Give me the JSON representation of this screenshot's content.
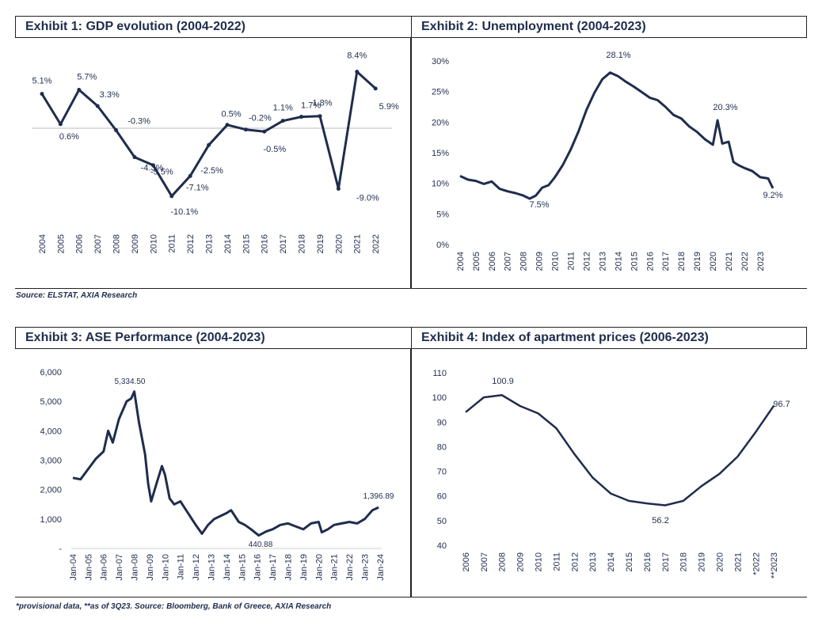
{
  "charts": [
    {
      "title": "Exhibit 1: GDP evolution (2004-2022)",
      "type": "line",
      "categories": [
        "2004",
        "2005",
        "2006",
        "2007",
        "2008",
        "2009",
        "2010",
        "2011",
        "2012",
        "2013",
        "2014",
        "2015",
        "2016",
        "2017",
        "2018",
        "2019",
        "2020",
        "2021",
        "2022"
      ],
      "values": [
        5.1,
        0.6,
        5.7,
        3.3,
        -0.3,
        -4.3,
        -5.5,
        -10.1,
        -7.1,
        -2.5,
        0.5,
        -0.2,
        -0.5,
        1.1,
        1.7,
        1.8,
        -9.0,
        8.4,
        5.9
      ],
      "labels": [
        "5.1%",
        "0.6%",
        "5.7%",
        "3.3%",
        "-0.3%",
        "-4.3%",
        "-5.5%",
        "-10.1%",
        "-7.1%",
        "-2.5%",
        "0.5%",
        "-0.2%",
        "-0.5%",
        "1.1%",
        "1.7%",
        "1.8%",
        "-9.0%",
        "8.4%",
        "5.9%"
      ],
      "line_color": "#1f2d4d"
    },
    {
      "title": "Exhibit 2: Unemployment (2004-2023)",
      "type": "line",
      "x_labels": [
        "2004",
        "2005",
        "2006",
        "2007",
        "2008",
        "2009",
        "2010",
        "2011",
        "2012",
        "2013",
        "2014",
        "2015",
        "2016",
        "2017",
        "2018",
        "2019",
        "2020",
        "2021",
        "2022",
        "2023"
      ],
      "y_ticks": [
        "0%",
        "5%",
        "10%",
        "15%",
        "20%",
        "25%",
        "30%"
      ],
      "ylim": [
        0,
        30
      ],
      "annotations": [
        "28.1%",
        "7.5%",
        "20.3%",
        "9.2%"
      ],
      "series": [
        {
          "x": 2004.0,
          "y": 11.2
        },
        {
          "x": 2004.5,
          "y": 10.6
        },
        {
          "x": 2005.0,
          "y": 10.4
        },
        {
          "x": 2005.5,
          "y": 9.9
        },
        {
          "x": 2006.0,
          "y": 10.3
        },
        {
          "x": 2006.5,
          "y": 9.1
        },
        {
          "x": 2007.0,
          "y": 8.7
        },
        {
          "x": 2007.5,
          "y": 8.4
        },
        {
          "x": 2008.0,
          "y": 8.0
        },
        {
          "x": 2008.4,
          "y": 7.5
        },
        {
          "x": 2008.8,
          "y": 8.0
        },
        {
          "x": 2009.2,
          "y": 9.3
        },
        {
          "x": 2009.6,
          "y": 9.7
        },
        {
          "x": 2010.0,
          "y": 11.0
        },
        {
          "x": 2010.5,
          "y": 13.0
        },
        {
          "x": 2011.0,
          "y": 15.5
        },
        {
          "x": 2011.5,
          "y": 18.5
        },
        {
          "x": 2012.0,
          "y": 22.0
        },
        {
          "x": 2012.5,
          "y": 24.8
        },
        {
          "x": 2013.0,
          "y": 27.0
        },
        {
          "x": 2013.5,
          "y": 28.1
        },
        {
          "x": 2014.0,
          "y": 27.5
        },
        {
          "x": 2014.5,
          "y": 26.6
        },
        {
          "x": 2015.0,
          "y": 25.8
        },
        {
          "x": 2015.5,
          "y": 24.9
        },
        {
          "x": 2016.0,
          "y": 24.0
        },
        {
          "x": 2016.5,
          "y": 23.6
        },
        {
          "x": 2017.0,
          "y": 22.5
        },
        {
          "x": 2017.5,
          "y": 21.2
        },
        {
          "x": 2018.0,
          "y": 20.6
        },
        {
          "x": 2018.5,
          "y": 19.3
        },
        {
          "x": 2019.0,
          "y": 18.4
        },
        {
          "x": 2019.5,
          "y": 17.2
        },
        {
          "x": 2020.0,
          "y": 16.3
        },
        {
          "x": 2020.3,
          "y": 20.3
        },
        {
          "x": 2020.6,
          "y": 16.5
        },
        {
          "x": 2021.0,
          "y": 16.8
        },
        {
          "x": 2021.3,
          "y": 13.5
        },
        {
          "x": 2021.6,
          "y": 13.0
        },
        {
          "x": 2022.0,
          "y": 12.5
        },
        {
          "x": 2022.5,
          "y": 12.0
        },
        {
          "x": 2023.0,
          "y": 11.0
        },
        {
          "x": 2023.5,
          "y": 10.8
        },
        {
          "x": 2023.8,
          "y": 9.2
        }
      ]
    },
    {
      "title": "Exhibit 3: ASE Performance (2004-2023)",
      "type": "line",
      "x_labels": [
        "Jan-04",
        "Jan-05",
        "Jan-06",
        "Jan-07",
        "Jan-08",
        "Jan-09",
        "Jan-10",
        "Jan-11",
        "Jan-12",
        "Jan-13",
        "Jan-14",
        "Jan-15",
        "Jan-16",
        "Jan-17",
        "Jan-18",
        "Jan-19",
        "Jan-20",
        "Jan-21",
        "Jan-22",
        "Jan-23",
        "Jan-24"
      ],
      "y_ticks": [
        "-",
        "1,000",
        "2,000",
        "3,000",
        "4,000",
        "5,000",
        "6,000"
      ],
      "ylim": [
        0,
        6000
      ],
      "annotations": [
        "5,334.50",
        "440.88",
        "1,396.89"
      ],
      "series": [
        {
          "x": 2004.0,
          "y": 2400
        },
        {
          "x": 2004.5,
          "y": 2350
        },
        {
          "x": 2005.0,
          "y": 2700
        },
        {
          "x": 2005.5,
          "y": 3050
        },
        {
          "x": 2006.0,
          "y": 3300
        },
        {
          "x": 2006.3,
          "y": 4000
        },
        {
          "x": 2006.6,
          "y": 3600
        },
        {
          "x": 2007.0,
          "y": 4400
        },
        {
          "x": 2007.5,
          "y": 5000
        },
        {
          "x": 2007.8,
          "y": 5100
        },
        {
          "x": 2008.0,
          "y": 5334.5
        },
        {
          "x": 2008.3,
          "y": 4300
        },
        {
          "x": 2008.7,
          "y": 3200
        },
        {
          "x": 2008.9,
          "y": 2200
        },
        {
          "x": 2009.1,
          "y": 1600
        },
        {
          "x": 2009.5,
          "y": 2300
        },
        {
          "x": 2009.8,
          "y": 2800
        },
        {
          "x": 2010.0,
          "y": 2500
        },
        {
          "x": 2010.3,
          "y": 1700
        },
        {
          "x": 2010.6,
          "y": 1500
        },
        {
          "x": 2011.0,
          "y": 1600
        },
        {
          "x": 2011.5,
          "y": 1200
        },
        {
          "x": 2012.0,
          "y": 800
        },
        {
          "x": 2012.4,
          "y": 500
        },
        {
          "x": 2012.8,
          "y": 800
        },
        {
          "x": 2013.2,
          "y": 1000
        },
        {
          "x": 2013.6,
          "y": 1100
        },
        {
          "x": 2014.0,
          "y": 1200
        },
        {
          "x": 2014.3,
          "y": 1300
        },
        {
          "x": 2014.8,
          "y": 900
        },
        {
          "x": 2015.2,
          "y": 800
        },
        {
          "x": 2015.6,
          "y": 650
        },
        {
          "x": 2016.1,
          "y": 440.88
        },
        {
          "x": 2016.6,
          "y": 580
        },
        {
          "x": 2017.0,
          "y": 650
        },
        {
          "x": 2017.5,
          "y": 800
        },
        {
          "x": 2018.0,
          "y": 850
        },
        {
          "x": 2018.5,
          "y": 750
        },
        {
          "x": 2019.0,
          "y": 650
        },
        {
          "x": 2019.5,
          "y": 850
        },
        {
          "x": 2020.0,
          "y": 900
        },
        {
          "x": 2020.2,
          "y": 550
        },
        {
          "x": 2020.6,
          "y": 650
        },
        {
          "x": 2021.0,
          "y": 800
        },
        {
          "x": 2021.5,
          "y": 850
        },
        {
          "x": 2022.0,
          "y": 900
        },
        {
          "x": 2022.5,
          "y": 850
        },
        {
          "x": 2023.0,
          "y": 1000
        },
        {
          "x": 2023.5,
          "y": 1300
        },
        {
          "x": 2023.9,
          "y": 1396.89
        }
      ]
    },
    {
      "title": "Exhibit 4: Index of apartment prices (2006-2023)",
      "type": "line",
      "categories": [
        "2006",
        "2007",
        "2008",
        "2009",
        "2010",
        "2011",
        "2012",
        "2013",
        "2014",
        "2015",
        "2016",
        "2017",
        "2018",
        "2019",
        "2020",
        "2021",
        "*2022",
        "**2023"
      ],
      "values": [
        94.0,
        100.0,
        100.9,
        96.5,
        93.5,
        87.5,
        77.0,
        67.5,
        61.0,
        58.0,
        57.0,
        56.2,
        58.0,
        64.0,
        69.0,
        76.0,
        86.0,
        96.7
      ],
      "y_ticks": [
        "40",
        "50",
        "60",
        "70",
        "80",
        "90",
        "100",
        "110"
      ],
      "ylim": [
        40,
        110
      ],
      "annotations": [
        "100.9",
        "56.2",
        "96.7"
      ]
    }
  ],
  "sources": {
    "top": "Source: ELSTAT, AXIA Research",
    "bottom": "*provisional data, **as of 3Q23. Source: Bloomberg, Bank of Greece, AXIA Research"
  }
}
